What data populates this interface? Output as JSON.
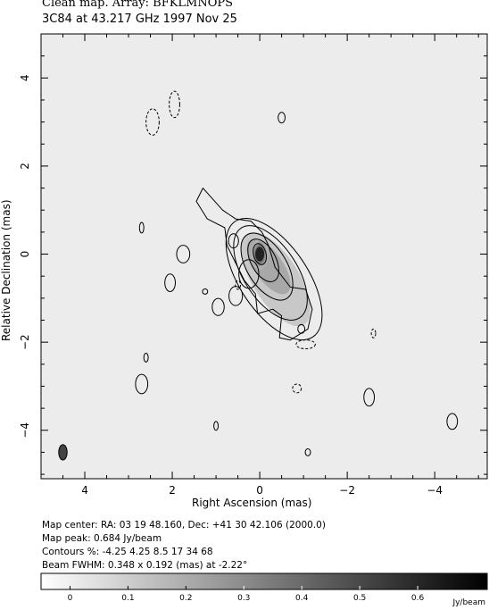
{
  "header": {
    "title_line1": "Clean map.  Array: BFKLMNOPS",
    "title_line2": "3C84 at 43.217 GHz 1997 Nov 25"
  },
  "footer": {
    "map_center": "Map center:  RA: 03 19 48.160,  Dec: +41 30 42.106 (2000.0)",
    "map_peak": "Map peak: 0.684 Jy/beam",
    "contours": "Contours %: -4.25 4.25 8.5 17 34 68",
    "beam": "Beam FWHM: 0.348 x 0.192 (mas) at -2.22°"
  },
  "chart_data": {
    "type": "heatmap",
    "xlabel": "Right Ascension   (mas)",
    "ylabel": "Relative Declination   (mas)",
    "xlim": [
      5.0,
      -5.2
    ],
    "ylim": [
      -5.1,
      5.0
    ],
    "x_ticks": [
      4,
      2,
      0,
      -2,
      -4
    ],
    "x_tick_labels": [
      "4",
      "2",
      "0",
      "−2",
      "−4"
    ],
    "y_ticks": [
      4,
      2,
      0,
      -2,
      -4
    ],
    "y_tick_labels": [
      "4",
      "2",
      "0",
      "−2",
      "−4"
    ],
    "contour_levels_percent": [
      -4.25,
      4.25,
      8.5,
      17,
      34,
      68
    ],
    "map_peak_jy_per_beam": 0.684,
    "colorbar": {
      "min": -0.05,
      "max": 0.72,
      "ticks": [
        0,
        0.1,
        0.2,
        0.3,
        0.4,
        0.5,
        0.6
      ],
      "tick_labels": [
        "0",
        "0.1",
        "0.2",
        "0.3",
        "0.4",
        "0.5",
        "0.6"
      ],
      "unit": "Jy/beam"
    },
    "beam": {
      "major_mas": 0.348,
      "minor_mas": 0.192,
      "pa_deg": -2.22,
      "center": [
        4.5,
        -4.5
      ]
    },
    "core": {
      "ra": 0.0,
      "dec": 0.0,
      "peak": 0.684
    },
    "jet_components": [
      {
        "ra": 0.25,
        "dec": -0.45,
        "flux": 0.25
      },
      {
        "ra": 0.55,
        "dec": -0.95,
        "flux": 0.12
      },
      {
        "ra": 0.95,
        "dec": -1.2,
        "flux": 0.09
      },
      {
        "ra": 0.6,
        "dec": 0.3,
        "flux": 0.05
      }
    ],
    "isolated_contours": [
      {
        "ra": 2.45,
        "dec": 3.0,
        "rx": 0.15,
        "ry": 0.3,
        "negative": true
      },
      {
        "ra": 1.95,
        "dec": 3.4,
        "rx": 0.12,
        "ry": 0.3,
        "negative": true
      },
      {
        "ra": -0.5,
        "dec": 3.1,
        "rx": 0.08,
        "ry": 0.12,
        "negative": false
      },
      {
        "ra": 2.7,
        "dec": 0.6,
        "rx": 0.05,
        "ry": 0.12,
        "negative": false
      },
      {
        "ra": 1.75,
        "dec": 0.0,
        "rx": 0.15,
        "ry": 0.2,
        "negative": false
      },
      {
        "ra": 2.05,
        "dec": -0.65,
        "rx": 0.12,
        "ry": 0.2,
        "negative": false
      },
      {
        "ra": 1.25,
        "dec": -0.85,
        "rx": 0.06,
        "ry": 0.06,
        "negative": false
      },
      {
        "ra": 0.5,
        "dec": -0.7,
        "rx": 0.06,
        "ry": 0.1,
        "negative": true
      },
      {
        "ra": -0.95,
        "dec": -1.7,
        "rx": 0.08,
        "ry": 0.1,
        "negative": false
      },
      {
        "ra": -1.05,
        "dec": -2.05,
        "rx": 0.22,
        "ry": 0.1,
        "negative": true
      },
      {
        "ra": -2.6,
        "dec": -1.8,
        "rx": 0.05,
        "ry": 0.1,
        "negative": true
      },
      {
        "ra": 2.6,
        "dec": -2.35,
        "rx": 0.05,
        "ry": 0.1,
        "negative": false
      },
      {
        "ra": 2.7,
        "dec": -2.95,
        "rx": 0.14,
        "ry": 0.22,
        "negative": false
      },
      {
        "ra": -0.85,
        "dec": -3.05,
        "rx": 0.1,
        "ry": 0.1,
        "negative": true
      },
      {
        "ra": -2.5,
        "dec": -3.25,
        "rx": 0.12,
        "ry": 0.2,
        "negative": false
      },
      {
        "ra": -4.4,
        "dec": -3.8,
        "rx": 0.12,
        "ry": 0.18,
        "negative": false
      },
      {
        "ra": 1.0,
        "dec": -3.9,
        "rx": 0.05,
        "ry": 0.1,
        "negative": false
      },
      {
        "ra": -1.1,
        "dec": -4.5,
        "rx": 0.06,
        "ry": 0.08,
        "negative": false
      }
    ]
  }
}
